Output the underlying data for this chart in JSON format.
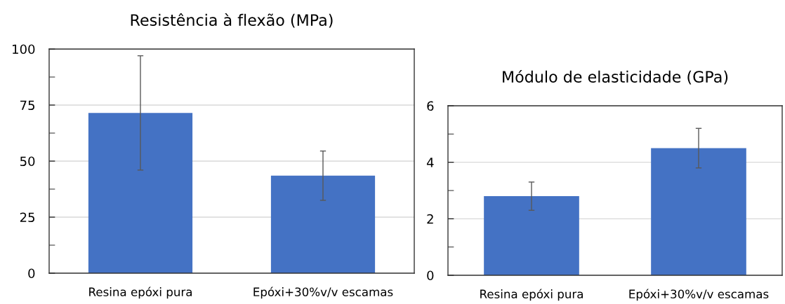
{
  "chart_data": [
    {
      "type": "bar",
      "title": "Resistência à flexão (MPa)",
      "categories": [
        "Resina epóxi pura",
        "Epóxi+30%v/v escamas"
      ],
      "values": [
        71.5,
        43.5
      ],
      "errors": [
        25.5,
        11
      ],
      "color": "#4472c4",
      "ylim": [
        0,
        100
      ],
      "yticks": [
        0,
        {
          "value": 12.5,
          "label": null
        },
        25,
        {
          "value": 37.5,
          "label": null
        },
        50,
        {
          "value": 62.5,
          "label": null
        },
        75,
        {
          "value": 87.5,
          "label": null
        },
        100
      ],
      "grid": "y"
    },
    {
      "type": "bar",
      "title": "Módulo de elasticidade (GPa)",
      "categories": [
        "Resina epóxi pura",
        "Epóxi+30%v/v escamas"
      ],
      "values": [
        2.8,
        4.5
      ],
      "errors": [
        0.5,
        0.7
      ],
      "color": "#4472c4",
      "ylim": [
        0,
        6
      ],
      "yticks": [
        0,
        {
          "value": 1,
          "label": null
        },
        2,
        {
          "value": 3,
          "label": null
        },
        4,
        {
          "value": 5,
          "label": null
        },
        6
      ],
      "grid": "y"
    }
  ]
}
